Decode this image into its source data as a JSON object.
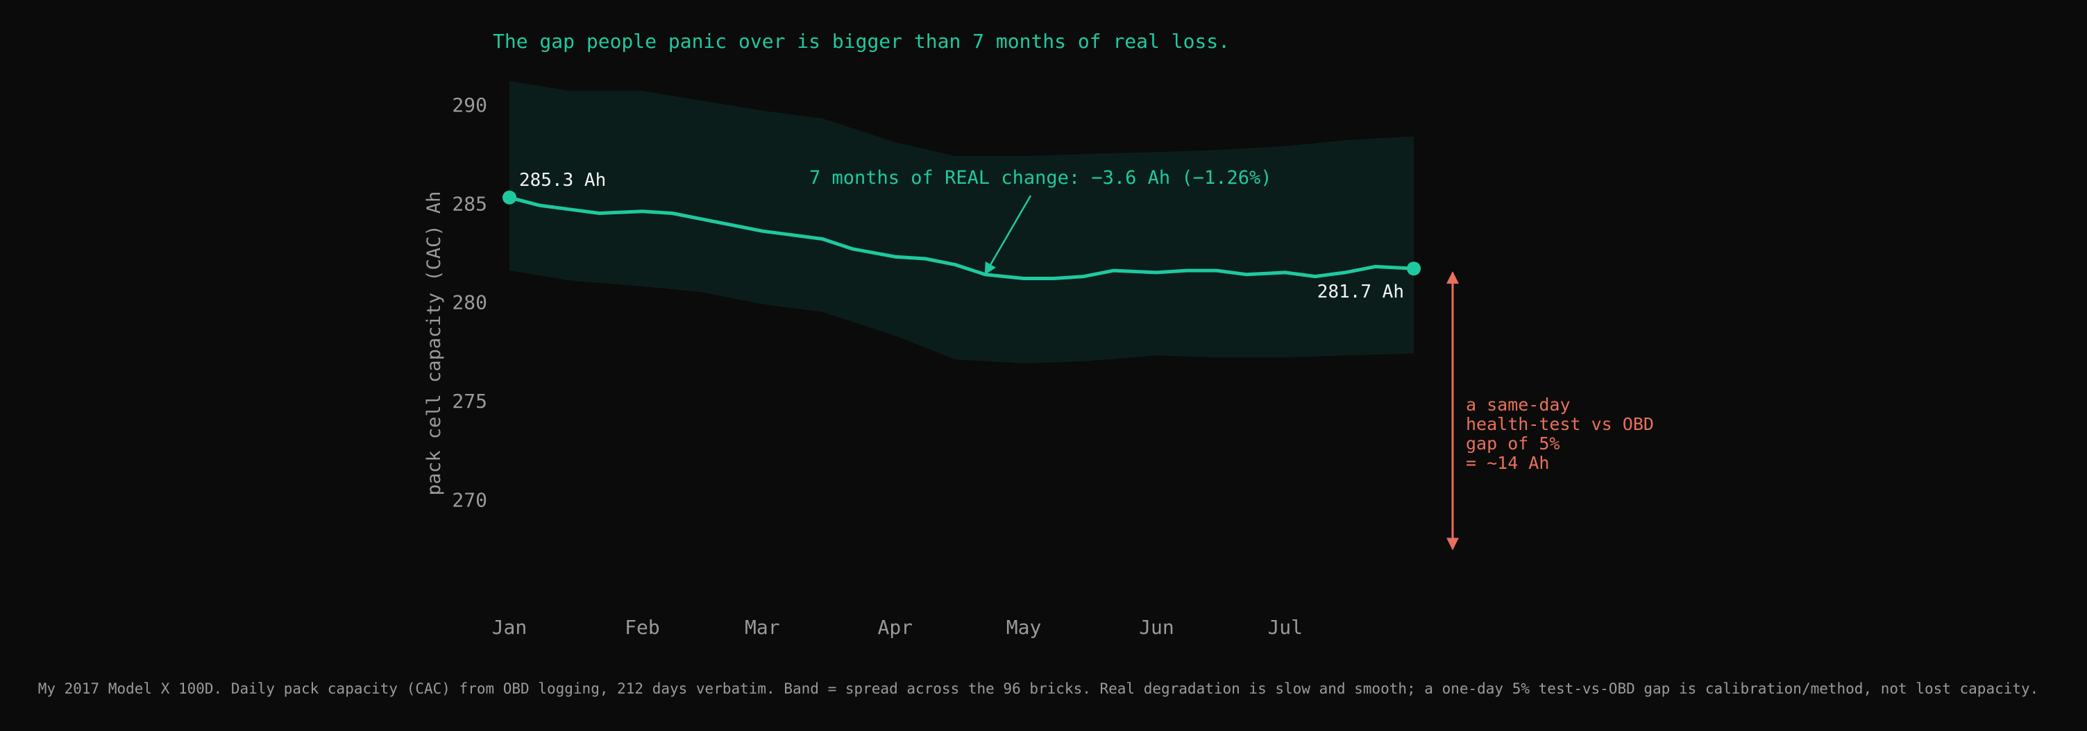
{
  "colors": {
    "background": "#0b0b0b",
    "accent": "#1fc9a0",
    "band": "#0b1d1a",
    "warning": "#e8705c",
    "text_muted": "#9a9a9a",
    "text_bright": "#f2f2f2"
  },
  "title": "The gap people panic over is bigger than 7 months of real loss.",
  "footer": "My 2017 Model X 100D. Daily pack capacity (CAC) from OBD logging, 212 days verbatim. Band = spread across the 96 bricks. Real degradation is slow and smooth; a one-day 5% test-vs-OBD gap is calibration/method, not lost capacity.",
  "chart_data": {
    "type": "line",
    "xlabel": "",
    "ylabel": "pack cell capacity (CAC)  Ah",
    "x_ticks": [
      "Jan",
      "Feb",
      "Mar",
      "Apr",
      "May",
      "Jun",
      "Jul"
    ],
    "y_ticks": [
      270,
      275,
      280,
      285,
      290
    ],
    "ylim": [
      266.5,
      292
    ],
    "grid": false,
    "legend": "none",
    "series": [
      {
        "points": [
          [
            "2017-01-01",
            285.3
          ],
          [
            "2017-01-08",
            284.9
          ],
          [
            "2017-01-15",
            284.7
          ],
          [
            "2017-01-22",
            284.5
          ],
          [
            "2017-02-01",
            284.6
          ],
          [
            "2017-02-08",
            284.5
          ],
          [
            "2017-02-15",
            284.2
          ],
          [
            "2017-02-22",
            283.9
          ],
          [
            "2017-03-01",
            283.6
          ],
          [
            "2017-03-08",
            283.4
          ],
          [
            "2017-03-15",
            283.2
          ],
          [
            "2017-03-22",
            282.7
          ],
          [
            "2017-04-01",
            282.3
          ],
          [
            "2017-04-08",
            282.2
          ],
          [
            "2017-04-15",
            281.9
          ],
          [
            "2017-04-22",
            281.4
          ],
          [
            "2017-05-01",
            281.2
          ],
          [
            "2017-05-08",
            281.2
          ],
          [
            "2017-05-15",
            281.3
          ],
          [
            "2017-05-22",
            281.6
          ],
          [
            "2017-06-01",
            281.5
          ],
          [
            "2017-06-08",
            281.6
          ],
          [
            "2017-06-15",
            281.6
          ],
          [
            "2017-06-22",
            281.4
          ],
          [
            "2017-07-01",
            281.5
          ],
          [
            "2017-07-08",
            281.3
          ],
          [
            "2017-07-15",
            281.5
          ],
          [
            "2017-07-22",
            281.8
          ],
          [
            "2017-07-31",
            281.7
          ]
        ]
      }
    ],
    "band": [
      [
        "2017-01-01",
        281.6,
        291.2
      ],
      [
        "2017-01-15",
        281.1,
        290.7
      ],
      [
        "2017-02-01",
        280.8,
        290.7
      ],
      [
        "2017-02-15",
        280.5,
        290.2
      ],
      [
        "2017-03-01",
        279.9,
        289.7
      ],
      [
        "2017-03-15",
        279.5,
        289.3
      ],
      [
        "2017-04-01",
        278.3,
        288.1
      ],
      [
        "2017-04-15",
        277.1,
        287.4
      ],
      [
        "2017-05-01",
        276.9,
        287.4
      ],
      [
        "2017-05-15",
        277.0,
        287.5
      ],
      [
        "2017-06-01",
        277.3,
        287.6
      ],
      [
        "2017-06-15",
        277.2,
        287.7
      ],
      [
        "2017-07-01",
        277.2,
        287.9
      ],
      [
        "2017-07-15",
        277.3,
        288.2
      ],
      [
        "2017-07-31",
        277.4,
        288.4
      ]
    ],
    "endpoints": [
      {
        "date": "2017-01-01",
        "value": 285.3,
        "label": "285.3 Ah"
      },
      {
        "date": "2017-07-31",
        "value": 281.7,
        "label": "281.7 Ah"
      }
    ],
    "annotations": [
      {
        "text": "7 months of REAL change: −3.6 Ah  (−1.26%)",
        "arrow_to_date": "2017-04-22",
        "arrow_to_value": 281.5
      }
    ],
    "gap_arrow": {
      "from_value": 281.5,
      "to_value": 267.5,
      "lines": [
        "a same-day",
        "health-test vs OBD",
        "gap of 5%",
        "= ~14 Ah"
      ]
    }
  }
}
